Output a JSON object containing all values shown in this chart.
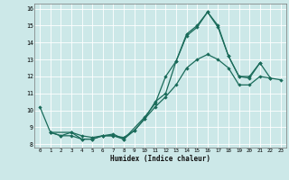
{
  "xlabel": "Humidex (Indice chaleur)",
  "bg_color": "#cce8e8",
  "line_color": "#1a6b5a",
  "xlim": [
    -0.5,
    23.5
  ],
  "ylim": [
    7.8,
    16.3
  ],
  "xticks": [
    0,
    1,
    2,
    3,
    4,
    5,
    6,
    7,
    8,
    9,
    10,
    11,
    12,
    13,
    14,
    15,
    16,
    17,
    18,
    19,
    20,
    21,
    22,
    23
  ],
  "yticks": [
    8,
    9,
    10,
    11,
    12,
    13,
    14,
    15,
    16
  ],
  "line1": {
    "x": [
      0,
      1,
      2,
      3,
      4,
      5,
      6,
      7,
      8,
      9,
      10,
      11,
      12,
      13,
      14,
      15,
      16,
      17,
      18,
      19,
      20,
      21,
      22
    ],
    "y": [
      10.2,
      8.7,
      8.5,
      8.5,
      8.3,
      8.3,
      8.5,
      8.5,
      8.3,
      8.8,
      9.5,
      10.5,
      11.0,
      12.9,
      14.5,
      15.0,
      15.8,
      15.0,
      13.2,
      12.0,
      12.0,
      12.8,
      11.9
    ]
  },
  "line2": {
    "x": [
      1,
      2,
      3,
      4,
      5,
      6,
      7,
      8,
      10,
      11,
      12,
      13,
      14,
      15,
      16,
      17,
      18,
      19,
      20,
      21
    ],
    "y": [
      8.7,
      8.5,
      8.7,
      8.3,
      8.3,
      8.5,
      8.6,
      8.3,
      9.6,
      10.4,
      12.0,
      12.9,
      14.4,
      14.9,
      15.8,
      14.9,
      13.2,
      12.0,
      11.9,
      12.8
    ]
  },
  "line3": {
    "x": [
      1,
      3,
      4,
      5,
      6,
      7,
      8,
      9,
      10,
      11,
      12,
      13,
      14,
      15,
      16,
      17,
      18,
      19,
      20,
      21,
      22,
      23
    ],
    "y": [
      8.7,
      8.7,
      8.5,
      8.4,
      8.5,
      8.5,
      8.4,
      8.8,
      9.5,
      10.2,
      10.8,
      11.5,
      12.5,
      13.0,
      13.3,
      13.0,
      12.5,
      11.5,
      11.5,
      12.0,
      11.9,
      11.8
    ]
  }
}
